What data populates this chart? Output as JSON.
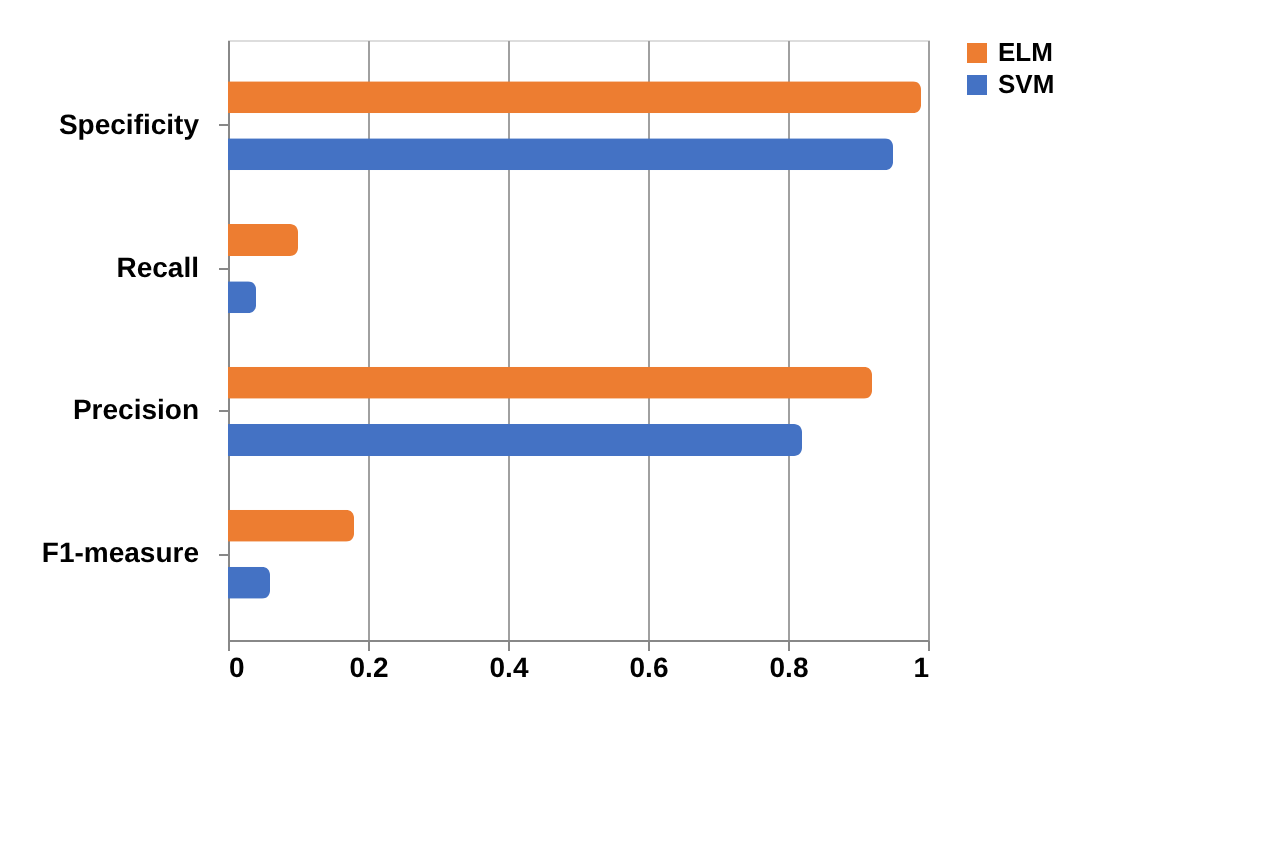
{
  "chart_data": {
    "type": "bar",
    "orientation": "horizontal",
    "categories": [
      "Specificity",
      "Recall",
      "Precision",
      "F1-measure"
    ],
    "series": [
      {
        "name": "ELM",
        "color": "#ed7d31",
        "values": [
          0.99,
          0.1,
          0.92,
          0.18
        ]
      },
      {
        "name": "SVM",
        "color": "#4472c4",
        "values": [
          0.95,
          0.04,
          0.82,
          0.06
        ]
      }
    ],
    "xlim": [
      0,
      1
    ],
    "xticks": [
      0,
      0.2,
      0.4,
      0.6,
      0.8,
      1
    ],
    "grid": "x",
    "legend": "right"
  }
}
